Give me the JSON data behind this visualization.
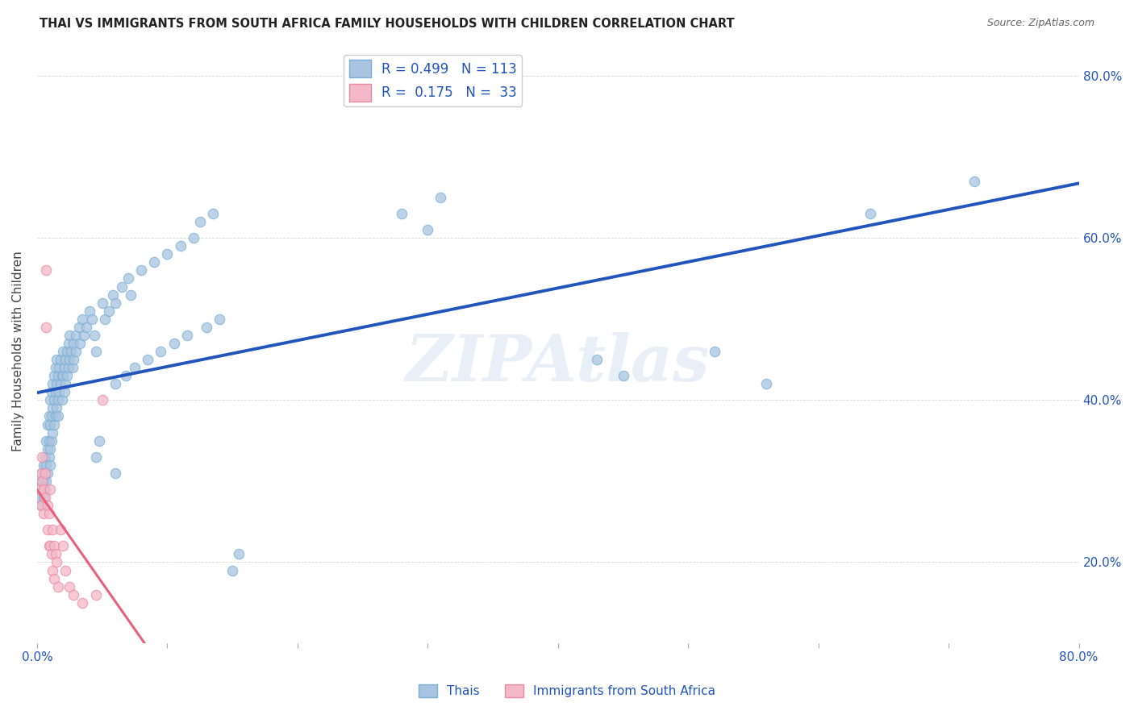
{
  "title": "THAI VS IMMIGRANTS FROM SOUTH AFRICA FAMILY HOUSEHOLDS WITH CHILDREN CORRELATION CHART",
  "source": "Source: ZipAtlas.com",
  "ylabel": "Family Households with Children",
  "x_min": 0.0,
  "x_max": 0.8,
  "y_min": 0.1,
  "y_max": 0.82,
  "blue_color": "#A8C4E0",
  "blue_edge_color": "#7AAFD4",
  "pink_color": "#F4B8C8",
  "pink_edge_color": "#E88AA4",
  "blue_line_color": "#2255BB",
  "pink_line_color": "#E8607A",
  "pink_dash_color": "#E8607A",
  "label_color": "#2255BB",
  "R_blue": 0.499,
  "N_blue": 113,
  "R_pink": 0.175,
  "N_pink": 33,
  "watermark": "ZIPAtlas",
  "legend_label_blue": "Thais",
  "legend_label_pink": "Immigrants from South Africa",
  "blue_points": [
    [
      0.002,
      0.28
    ],
    [
      0.003,
      0.3
    ],
    [
      0.003,
      0.27
    ],
    [
      0.004,
      0.31
    ],
    [
      0.004,
      0.29
    ],
    [
      0.005,
      0.32
    ],
    [
      0.005,
      0.3
    ],
    [
      0.005,
      0.28
    ],
    [
      0.006,
      0.33
    ],
    [
      0.006,
      0.31
    ],
    [
      0.006,
      0.29
    ],
    [
      0.007,
      0.35
    ],
    [
      0.007,
      0.32
    ],
    [
      0.007,
      0.3
    ],
    [
      0.008,
      0.37
    ],
    [
      0.008,
      0.34
    ],
    [
      0.008,
      0.31
    ],
    [
      0.009,
      0.38
    ],
    [
      0.009,
      0.35
    ],
    [
      0.009,
      0.33
    ],
    [
      0.01,
      0.4
    ],
    [
      0.01,
      0.37
    ],
    [
      0.01,
      0.34
    ],
    [
      0.01,
      0.32
    ],
    [
      0.011,
      0.41
    ],
    [
      0.011,
      0.38
    ],
    [
      0.011,
      0.35
    ],
    [
      0.012,
      0.42
    ],
    [
      0.012,
      0.39
    ],
    [
      0.012,
      0.36
    ],
    [
      0.013,
      0.43
    ],
    [
      0.013,
      0.4
    ],
    [
      0.013,
      0.37
    ],
    [
      0.014,
      0.44
    ],
    [
      0.014,
      0.41
    ],
    [
      0.014,
      0.38
    ],
    [
      0.015,
      0.45
    ],
    [
      0.015,
      0.42
    ],
    [
      0.015,
      0.39
    ],
    [
      0.016,
      0.43
    ],
    [
      0.016,
      0.4
    ],
    [
      0.016,
      0.38
    ],
    [
      0.017,
      0.44
    ],
    [
      0.017,
      0.41
    ],
    [
      0.018,
      0.45
    ],
    [
      0.018,
      0.42
    ],
    [
      0.019,
      0.43
    ],
    [
      0.019,
      0.4
    ],
    [
      0.02,
      0.46
    ],
    [
      0.02,
      0.43
    ],
    [
      0.021,
      0.44
    ],
    [
      0.021,
      0.41
    ],
    [
      0.022,
      0.45
    ],
    [
      0.022,
      0.42
    ],
    [
      0.023,
      0.46
    ],
    [
      0.023,
      0.43
    ],
    [
      0.024,
      0.47
    ],
    [
      0.024,
      0.44
    ],
    [
      0.025,
      0.48
    ],
    [
      0.025,
      0.45
    ],
    [
      0.026,
      0.46
    ],
    [
      0.027,
      0.44
    ],
    [
      0.028,
      0.47
    ],
    [
      0.028,
      0.45
    ],
    [
      0.03,
      0.48
    ],
    [
      0.03,
      0.46
    ],
    [
      0.032,
      0.49
    ],
    [
      0.033,
      0.47
    ],
    [
      0.035,
      0.5
    ],
    [
      0.036,
      0.48
    ],
    [
      0.038,
      0.49
    ],
    [
      0.04,
      0.51
    ],
    [
      0.042,
      0.5
    ],
    [
      0.044,
      0.48
    ],
    [
      0.045,
      0.46
    ],
    [
      0.045,
      0.33
    ],
    [
      0.048,
      0.35
    ],
    [
      0.05,
      0.52
    ],
    [
      0.052,
      0.5
    ],
    [
      0.055,
      0.51
    ],
    [
      0.058,
      0.53
    ],
    [
      0.06,
      0.52
    ],
    [
      0.06,
      0.42
    ],
    [
      0.06,
      0.31
    ],
    [
      0.065,
      0.54
    ],
    [
      0.068,
      0.43
    ],
    [
      0.07,
      0.55
    ],
    [
      0.072,
      0.53
    ],
    [
      0.075,
      0.44
    ],
    [
      0.08,
      0.56
    ],
    [
      0.085,
      0.45
    ],
    [
      0.09,
      0.57
    ],
    [
      0.095,
      0.46
    ],
    [
      0.1,
      0.58
    ],
    [
      0.105,
      0.47
    ],
    [
      0.11,
      0.59
    ],
    [
      0.115,
      0.48
    ],
    [
      0.12,
      0.6
    ],
    [
      0.125,
      0.62
    ],
    [
      0.13,
      0.49
    ],
    [
      0.135,
      0.63
    ],
    [
      0.14,
      0.5
    ],
    [
      0.15,
      0.19
    ],
    [
      0.155,
      0.21
    ],
    [
      0.28,
      0.63
    ],
    [
      0.3,
      0.61
    ],
    [
      0.31,
      0.65
    ],
    [
      0.43,
      0.45
    ],
    [
      0.45,
      0.43
    ],
    [
      0.52,
      0.46
    ],
    [
      0.56,
      0.42
    ],
    [
      0.64,
      0.63
    ],
    [
      0.72,
      0.67
    ]
  ],
  "pink_points": [
    [
      0.002,
      0.29
    ],
    [
      0.003,
      0.31
    ],
    [
      0.003,
      0.27
    ],
    [
      0.004,
      0.33
    ],
    [
      0.004,
      0.3
    ],
    [
      0.005,
      0.29
    ],
    [
      0.005,
      0.26
    ],
    [
      0.006,
      0.31
    ],
    [
      0.006,
      0.28
    ],
    [
      0.007,
      0.56
    ],
    [
      0.007,
      0.49
    ],
    [
      0.008,
      0.27
    ],
    [
      0.008,
      0.24
    ],
    [
      0.009,
      0.22
    ],
    [
      0.009,
      0.26
    ],
    [
      0.01,
      0.29
    ],
    [
      0.01,
      0.22
    ],
    [
      0.011,
      0.21
    ],
    [
      0.012,
      0.24
    ],
    [
      0.012,
      0.19
    ],
    [
      0.013,
      0.22
    ],
    [
      0.013,
      0.18
    ],
    [
      0.014,
      0.21
    ],
    [
      0.015,
      0.2
    ],
    [
      0.016,
      0.17
    ],
    [
      0.018,
      0.24
    ],
    [
      0.02,
      0.22
    ],
    [
      0.022,
      0.19
    ],
    [
      0.025,
      0.17
    ],
    [
      0.028,
      0.16
    ],
    [
      0.035,
      0.15
    ],
    [
      0.045,
      0.16
    ],
    [
      0.05,
      0.4
    ]
  ]
}
